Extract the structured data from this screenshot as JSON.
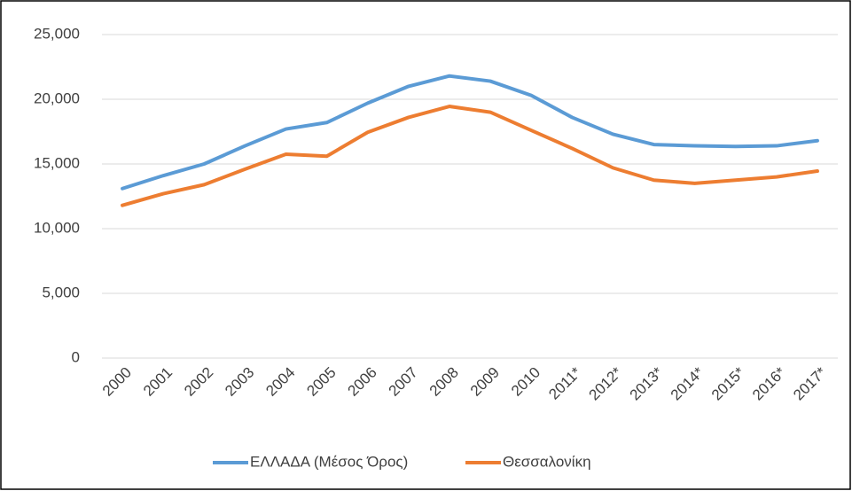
{
  "chart_data": {
    "type": "line",
    "categories": [
      "2000",
      "2001",
      "2002",
      "2003",
      "2004",
      "2005",
      "2006",
      "2007",
      "2008",
      "2009",
      "2010",
      "2011*",
      "2012*",
      "2013*",
      "2014*",
      "2015*",
      "2016*",
      "2017*"
    ],
    "series": [
      {
        "name": "ΕΛΛΑΔΑ (Μέσος Όρος)",
        "color": "#5b9bd5",
        "values": [
          13100,
          14100,
          15000,
          16400,
          17700,
          18200,
          19700,
          21000,
          21800,
          21400,
          20300,
          18600,
          17300,
          16500,
          16400,
          16350,
          16400,
          16800
        ]
      },
      {
        "name": "Θεσσαλονίκη",
        "color": "#ed7d31",
        "values": [
          11800,
          12700,
          13400,
          14600,
          15750,
          15600,
          17450,
          18600,
          19450,
          19000,
          17600,
          16200,
          14700,
          13750,
          13500,
          13750,
          14000,
          14450
        ]
      }
    ],
    "ylim": [
      0,
      25000
    ],
    "yticks": [
      0,
      {
        "value": 5000,
        "label": "5,000"
      },
      {
        "value": 10000,
        "label": "10,000"
      },
      {
        "value": 15000,
        "label": "15,000"
      },
      {
        "value": 20000,
        "label": "20,000"
      },
      {
        "value": 25000,
        "label": "25,000"
      }
    ],
    "grid": true,
    "legend": "bottom"
  }
}
